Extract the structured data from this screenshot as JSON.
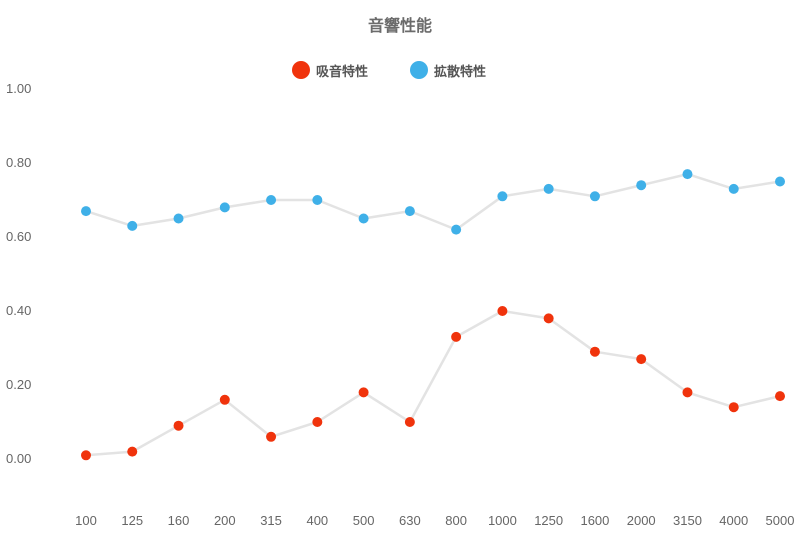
{
  "chart_data": {
    "type": "line",
    "title": "音響性能",
    "categories": [
      "100",
      "125",
      "160",
      "200",
      "315",
      "400",
      "500",
      "630",
      "800",
      "1000",
      "1250",
      "1600",
      "2000",
      "3150",
      "4000",
      "5000"
    ],
    "series": [
      {
        "name": "吸音特性",
        "color": "#f0330c",
        "values": [
          0.01,
          0.02,
          0.09,
          0.16,
          0.06,
          0.1,
          0.18,
          0.1,
          0.33,
          0.4,
          0.38,
          0.29,
          0.27,
          0.18,
          0.14,
          0.17
        ]
      },
      {
        "name": "拡散特性",
        "color": "#3fb0e8",
        "values": [
          0.67,
          0.63,
          0.65,
          0.68,
          0.7,
          0.7,
          0.65,
          0.67,
          0.62,
          0.71,
          0.73,
          0.71,
          0.74,
          0.77,
          0.73,
          0.75
        ]
      }
    ],
    "yticks": [
      "1.00",
      "0.80",
      "0.60",
      "0.40",
      "0.20",
      "0.00"
    ],
    "ylim": [
      -0.12,
      1.0
    ],
    "line_color": "#e3e3e3",
    "grid": false,
    "legend_position": "top-center"
  }
}
